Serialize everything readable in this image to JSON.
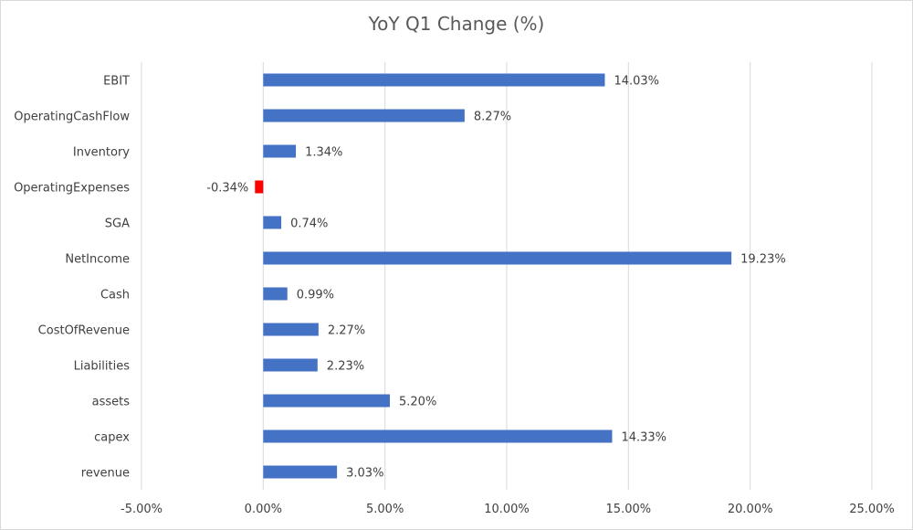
{
  "chart_data": {
    "type": "bar",
    "orientation": "horizontal",
    "title": "YoY Q1 Change (%)",
    "xlabel": "",
    "ylabel": "",
    "categories": [
      "EBIT",
      "OperatingCashFlow",
      "Inventory",
      "OperatingExpenses",
      "SGA",
      "NetIncome",
      "Cash",
      "CostOfRevenue",
      "Liabilities",
      "assets",
      "capex",
      "revenue"
    ],
    "values": [
      14.03,
      8.27,
      1.34,
      -0.34,
      0.74,
      19.23,
      0.99,
      2.27,
      2.23,
      5.2,
      14.33,
      3.03
    ],
    "data_labels": [
      "14.03%",
      "8.27%",
      "1.34%",
      "-0.34%",
      "0.74%",
      "19.23%",
      "0.99%",
      "2.27%",
      "2.23%",
      "5.20%",
      "14.33%",
      "3.03%"
    ],
    "xlim": [
      -5,
      25
    ],
    "x_ticks": [
      -5,
      0,
      5,
      10,
      15,
      20,
      25
    ],
    "x_tick_labels": [
      "-5.00%",
      "0.00%",
      "5.00%",
      "10.00%",
      "15.00%",
      "20.00%",
      "25.00%"
    ],
    "grid": "vertical",
    "legend": "none",
    "colors": {
      "positive": "#4472C4",
      "negative": "#FF0000",
      "grid": "#d9d9d9",
      "text": "#404040"
    }
  }
}
